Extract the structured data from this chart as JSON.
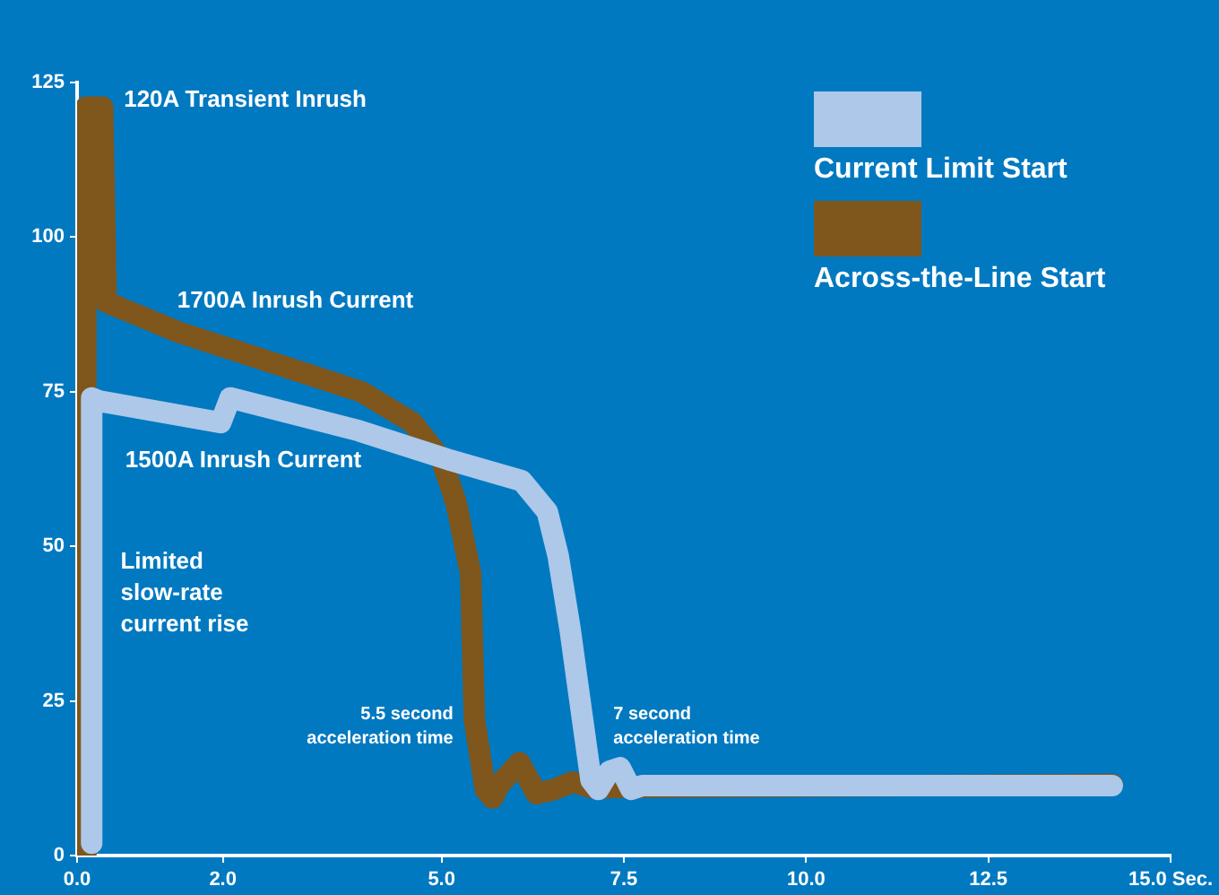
{
  "chart_data": {
    "type": "line",
    "xlim": [
      0,
      15
    ],
    "xticks": [
      {
        "value": 0,
        "label": "0.0"
      },
      {
        "value": 2,
        "label": "2.0"
      },
      {
        "value": 5,
        "label": "5.0"
      },
      {
        "value": 7.5,
        "label": "7.5"
      },
      {
        "value": 10,
        "label": "10.0"
      },
      {
        "value": 12.5,
        "label": "12.5"
      },
      {
        "value": 15,
        "label": "15.0 Sec."
      }
    ],
    "ylim": [
      0,
      125
    ],
    "yticks": [
      0,
      25,
      50,
      75,
      100,
      125
    ],
    "legend": "top right",
    "marker": "none",
    "line_style": "solid",
    "series": [
      {
        "name": "Current Limit Start",
        "color": "#adc8e8",
        "x": [
          0.2,
          0.2,
          0.3,
          1.97,
          2.1,
          3.86,
          5.1,
          6.1,
          6.45,
          6.6,
          6.76,
          6.93,
          7.05,
          7.15,
          7.3,
          7.45,
          7.6,
          7.75,
          14.2
        ],
        "values": [
          2,
          74,
          73.5,
          70,
          74,
          68.7,
          64,
          60.6,
          55.6,
          48.4,
          36.8,
          22.3,
          12.2,
          10.7,
          13.6,
          14.2,
          10.7,
          11.3,
          11.3
        ]
      },
      {
        "name": "Across-the-Line Start",
        "color": "#7f561c",
        "x": [
          0.12,
          0.12,
          0.35,
          0.4,
          1.4,
          2.6,
          3.9,
          4.6,
          5.0,
          5.2,
          5.4,
          5.45,
          5.6,
          5.7,
          5.8,
          6.07,
          6.3,
          6.55,
          6.8,
          7.05,
          14.2
        ],
        "values": [
          0,
          121,
          121,
          89.5,
          84.6,
          80,
          75,
          70,
          64,
          57,
          45.5,
          22,
          10.7,
          9.3,
          11.6,
          15,
          10,
          10.7,
          11.9,
          11,
          11.5
        ]
      }
    ],
    "annotations": [
      "120A Transient Inrush",
      "1700A Inrush Current",
      "1500A Inrush Current",
      "Limited\nslow-rate\ncurrent rise",
      "5.5 second\nacceleration time",
      "7 second\nacceleration time"
    ]
  }
}
